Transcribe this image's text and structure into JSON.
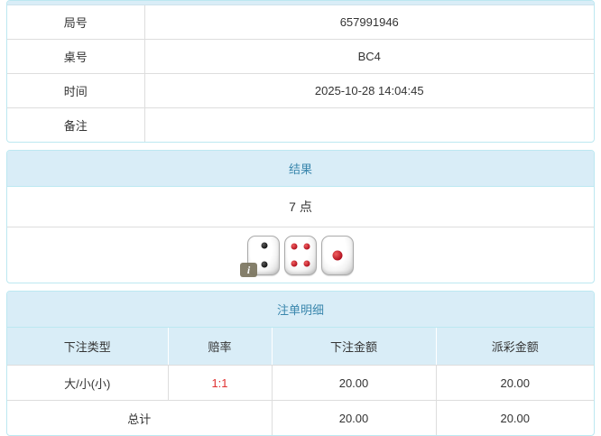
{
  "accent": {
    "panel_border": "#bce8f1",
    "panel_heading_bg": "#d9edf7",
    "panel_heading_text": "#3a87ad",
    "cell_border": "#dddddd",
    "odds_red": "#e03131",
    "body_text": "#333333",
    "info_badge_bg": "#7c7660"
  },
  "info_table": {
    "rows": [
      {
        "label": "局号",
        "value": "657991946"
      },
      {
        "label": "桌号",
        "value": "BC4"
      },
      {
        "label": "时间",
        "value": "2025-10-28 14:04:45"
      },
      {
        "label": "备注",
        "value": ""
      }
    ]
  },
  "result_panel": {
    "title": "结果",
    "points": "7 点",
    "dice": [
      {
        "value": 2,
        "color": "black"
      },
      {
        "value": 4,
        "color": "red"
      },
      {
        "value": 1,
        "color": "red"
      }
    ],
    "info_icon": "i"
  },
  "bets_panel": {
    "title": "注单明细",
    "columns": [
      "下注类型",
      "赔率",
      "下注金额",
      "派彩金额"
    ],
    "rows": [
      {
        "type": "大/小(小)",
        "odds": "1:1",
        "bet": "20.00",
        "payout": "20.00"
      }
    ],
    "total": {
      "label": "总计",
      "bet": "20.00",
      "payout": "20.00"
    }
  }
}
